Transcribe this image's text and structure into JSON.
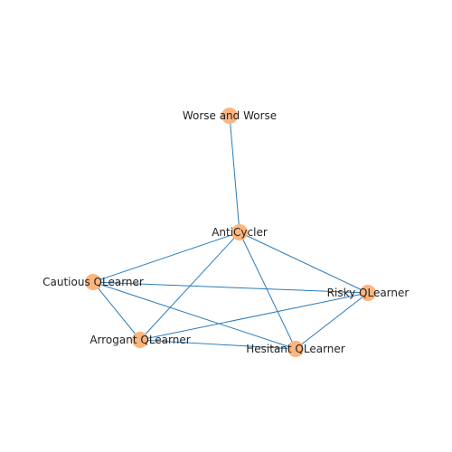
{
  "graph": {
    "colors": {
      "edge": "#2b7bba",
      "node": "#fdb57f",
      "label": "#222222"
    },
    "nodes": [
      {
        "id": "worse",
        "label": "Worse and Worse"
      },
      {
        "id": "anticycler",
        "label": "AntiCycler"
      },
      {
        "id": "cautious",
        "label": "Cautious QLearner"
      },
      {
        "id": "risky",
        "label": "Risky QLearner"
      },
      {
        "id": "arrogant",
        "label": "Arrogant QLearner"
      },
      {
        "id": "hesitant",
        "label": "Hesitant QLearner"
      }
    ],
    "edges": [
      {
        "source": "worse",
        "target": "anticycler"
      },
      {
        "source": "anticycler",
        "target": "cautious"
      },
      {
        "source": "anticycler",
        "target": "risky"
      },
      {
        "source": "anticycler",
        "target": "arrogant"
      },
      {
        "source": "anticycler",
        "target": "hesitant"
      },
      {
        "source": "cautious",
        "target": "risky"
      },
      {
        "source": "cautious",
        "target": "arrogant"
      },
      {
        "source": "cautious",
        "target": "hesitant"
      },
      {
        "source": "risky",
        "target": "arrogant"
      },
      {
        "source": "risky",
        "target": "hesitant"
      },
      {
        "source": "arrogant",
        "target": "hesitant"
      }
    ]
  }
}
